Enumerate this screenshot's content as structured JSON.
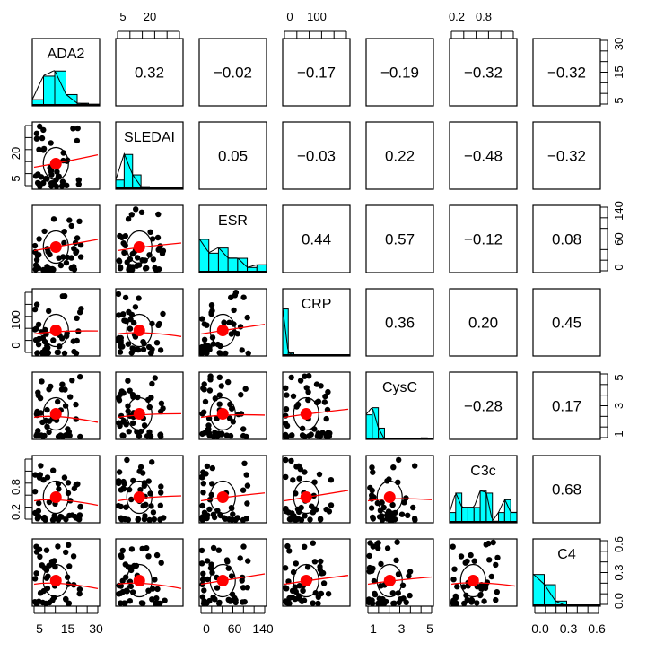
{
  "chart_data": {
    "type": "pairs-panels",
    "title": "",
    "variables": [
      "ADA2",
      "SLEDAI",
      "ESR",
      "CRP",
      "CysC",
      "C3c",
      "C4"
    ],
    "colors": {
      "histogram_fill": "#00ffff",
      "points": "#000000",
      "mean_point": "#ff0000",
      "loess_line": "#ff0000",
      "ellipse": "#000000"
    },
    "correlations": [
      {
        "row": "ADA2",
        "col": "SLEDAI",
        "value": "0.32"
      },
      {
        "row": "ADA2",
        "col": "ESR",
        "value": "−0.02"
      },
      {
        "row": "ADA2",
        "col": "CRP",
        "value": "−0.17"
      },
      {
        "row": "ADA2",
        "col": "CysC",
        "value": "−0.19"
      },
      {
        "row": "ADA2",
        "col": "C3c",
        "value": "−0.32"
      },
      {
        "row": "ADA2",
        "col": "C4",
        "value": "−0.32"
      },
      {
        "row": "SLEDAI",
        "col": "ESR",
        "value": "0.05"
      },
      {
        "row": "SLEDAI",
        "col": "CRP",
        "value": "−0.03"
      },
      {
        "row": "SLEDAI",
        "col": "CysC",
        "value": "0.22"
      },
      {
        "row": "SLEDAI",
        "col": "C3c",
        "value": "−0.48"
      },
      {
        "row": "SLEDAI",
        "col": "C4",
        "value": "−0.32"
      },
      {
        "row": "ESR",
        "col": "CRP",
        "value": "0.44"
      },
      {
        "row": "ESR",
        "col": "CysC",
        "value": "0.57"
      },
      {
        "row": "ESR",
        "col": "C3c",
        "value": "−0.12"
      },
      {
        "row": "ESR",
        "col": "C4",
        "value": "0.08"
      },
      {
        "row": "CRP",
        "col": "CysC",
        "value": "0.36"
      },
      {
        "row": "CRP",
        "col": "C3c",
        "value": "0.20"
      },
      {
        "row": "CRP",
        "col": "C4",
        "value": "0.45"
      },
      {
        "row": "CysC",
        "col": "C3c",
        "value": "−0.28"
      },
      {
        "row": "CysC",
        "col": "C4",
        "value": "0.17"
      },
      {
        "row": "C3c",
        "col": "C4",
        "value": "0.68"
      }
    ],
    "axes": {
      "top": [
        {
          "var": "SLEDAI",
          "labels": [
            "5",
            "20"
          ]
        },
        {
          "var": "CRP",
          "labels": [
            "0",
            "100"
          ]
        },
        {
          "var": "C3c",
          "labels": [
            "0.2",
            "0.8"
          ]
        }
      ],
      "bottom": [
        {
          "var": "ADA2",
          "labels": [
            "5",
            "15",
            "30"
          ]
        },
        {
          "var": "ESR",
          "labels": [
            "0",
            "60",
            "140"
          ]
        },
        {
          "var": "CysC",
          "labels": [
            "1",
            "3",
            "5"
          ]
        },
        {
          "var": "C4",
          "labels": [
            "0.0",
            "0.3",
            "0.6"
          ]
        }
      ],
      "left": [
        {
          "var": "SLEDAI",
          "labels": [
            "5",
            "20"
          ]
        },
        {
          "var": "CRP",
          "labels": [
            "0",
            "100"
          ]
        },
        {
          "var": "C3c",
          "labels": [
            "0.2",
            "0.8"
          ]
        }
      ],
      "right": [
        {
          "var": "ADA2",
          "labels": [
            "5",
            "15",
            "30"
          ]
        },
        {
          "var": "ESR",
          "labels": [
            "0",
            "60",
            "140"
          ]
        },
        {
          "var": "CysC",
          "labels": [
            "1",
            "3",
            "5"
          ]
        },
        {
          "var": "C4",
          "labels": [
            "0.0",
            "0.3",
            "0.6"
          ]
        }
      ]
    },
    "histograms": {
      "ADA2": [
        0.12,
        0.58,
        0.68,
        0.22,
        0.05,
        0.03
      ],
      "SLEDAI": [
        0.18,
        0.68,
        0.28,
        0.05,
        0.02,
        0.0,
        0.0,
        0.01
      ],
      "ESR": [
        0.65,
        0.38,
        0.48,
        0.28,
        0.28,
        0.1,
        0.15
      ],
      "CRP": [
        0.92,
        0.06,
        0.02,
        0.0,
        0.0,
        0.0,
        0.0,
        0.0,
        0.0,
        0.0,
        0.0,
        0.0
      ],
      "CysC": [
        0.48,
        0.62,
        0.22,
        0.0,
        0.02,
        0.0,
        0.0,
        0.0,
        0.0,
        0.03,
        0.0
      ],
      "C3c": [
        0.2,
        0.58,
        0.3,
        0.3,
        0.3,
        0.62,
        0.58,
        0.03,
        0.2,
        0.45,
        0.2
      ],
      "C4": [
        0.62,
        0.42,
        0.1,
        0.0,
        0.0,
        0.0
      ]
    }
  }
}
